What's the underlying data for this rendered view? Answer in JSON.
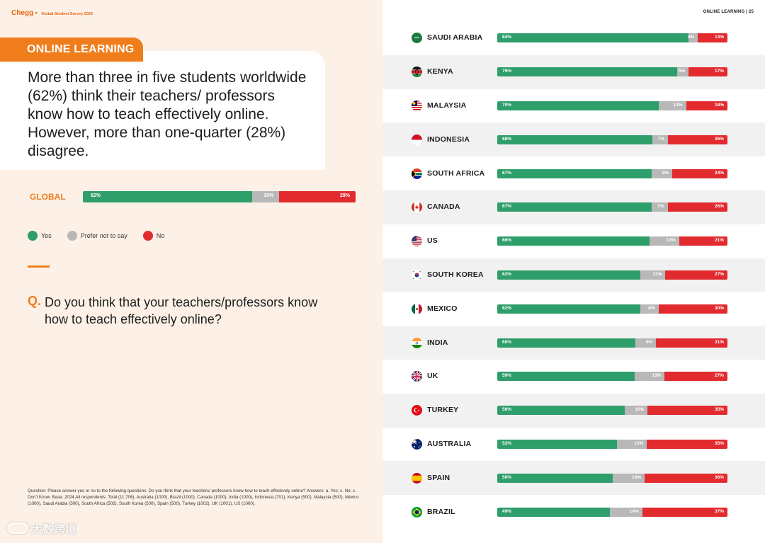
{
  "brand": {
    "name": "Chegg",
    "separator": "•",
    "subtitle": "Global Student Survey 2025"
  },
  "page_header": "ONLINE LEARNING  |  25",
  "section_tag": "ONLINE LEARNING",
  "headline": "More than three in five students worldwide (62%) think their teachers/ professors know how to teach effectively online. However, more than one-quarter (28%) disagree.",
  "question": {
    "prefix": "Q.",
    "text": "Do you think that your teachers/professors know how to teach effectively online?"
  },
  "footnote": "Question: Please answer yes or no to the following questions: Do you think that your teachers/ professors know how to teach effectively online?  Answers: a. Yes; c. No; c. Don't Know. Base: 2024 All respondents: Total (11,706), Australia (1000), Brazil (1000), Canada (1000), India (1000), Indonesia (701), Kenya (500), Malaysia (500), Mexico (1000), Saudi Arabia (500), South Africa (502), South Korea (500), Spain (500), Turkey (1002), UK (1001), US (1000).",
  "watermark": "大数跨境",
  "colors": {
    "yes": "#2e9e6a",
    "neutral": "#b8b8b8",
    "no": "#e22b2f",
    "accent": "#f07d1c"
  },
  "chart_data": {
    "type": "bar",
    "orientation": "horizontal",
    "stacked": true,
    "title": "Do you think that your teachers/professors know how to teach effectively online?",
    "legend": {
      "placement": "bottom-left",
      "entries": [
        "Yes",
        "Prefer not to say",
        "No"
      ]
    },
    "global": {
      "label": "GLOBAL",
      "yes": 62,
      "neutral": 10,
      "no": 28
    },
    "categories": [
      "SAUDI ARABIA",
      "KENYA",
      "MALAYSIA",
      "INDONESIA",
      "SOUTH AFRICA",
      "CANADA",
      "US",
      "SOUTH KOREA",
      "MEXICO",
      "INDIA",
      "UK",
      "TURKEY",
      "AUSTRALIA",
      "SPAIN",
      "BRAZIL"
    ],
    "flags": [
      "sa",
      "ke",
      "my",
      "id",
      "za",
      "ca",
      "us",
      "kr",
      "mx",
      "in",
      "gb",
      "tr",
      "au",
      "es",
      "br"
    ],
    "series": [
      {
        "name": "Yes",
        "values": [
          84,
          79,
          70,
          68,
          67,
          67,
          66,
          62,
          62,
          60,
          59,
          56,
          52,
          50,
          49
        ]
      },
      {
        "name": "Prefer not to say",
        "values": [
          4,
          5,
          12,
          7,
          9,
          7,
          13,
          11,
          8,
          9,
          13,
          10,
          13,
          14,
          14
        ]
      },
      {
        "name": "No",
        "values": [
          13,
          17,
          18,
          26,
          24,
          26,
          21,
          27,
          30,
          31,
          27,
          35,
          35,
          36,
          37
        ]
      }
    ],
    "unit": "%",
    "xlim": [
      0,
      100
    ]
  }
}
